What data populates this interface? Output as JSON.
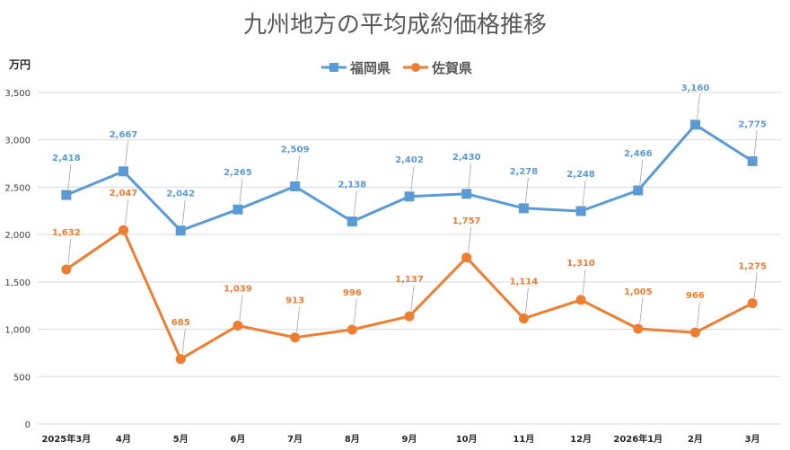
{
  "chart_data": {
    "type": "line",
    "title": "九州地方の平均成約価格推移",
    "ylabel": "万円",
    "xlabel": "",
    "ylim": [
      0,
      3500
    ],
    "yticks": [
      "0",
      "500",
      "1,000",
      "1,500",
      "2,000",
      "2,500",
      "3,000",
      "3,500"
    ],
    "ytick_values": [
      0,
      500,
      1000,
      1500,
      2000,
      2500,
      3000,
      3500
    ],
    "categories": [
      "2025年3月",
      "4月",
      "5月",
      "6月",
      "7月",
      "8月",
      "9月",
      "10月",
      "11月",
      "12月",
      "2026年1月",
      "2月",
      "3月"
    ],
    "grid": true,
    "legend_position": "top-center",
    "series": [
      {
        "name": "福岡県",
        "color": "#5b9bd5",
        "marker": "square",
        "values": [
          2418,
          2667,
          2042,
          2265,
          2509,
          2138,
          2402,
          2430,
          2278,
          2248,
          2466,
          3160,
          2775
        ],
        "labels": [
          "2,418",
          "2,667",
          "2,042",
          "2,265",
          "2,509",
          "2,138",
          "2,402",
          "2,430",
          "2,278",
          "2,248",
          "2,466",
          "3,160",
          "2,775"
        ]
      },
      {
        "name": "佐賀県",
        "color": "#ed7d31",
        "marker": "circle",
        "values": [
          1632,
          2047,
          685,
          1039,
          913,
          996,
          1137,
          1757,
          1114,
          1310,
          1005,
          966,
          1275
        ],
        "labels": [
          "1,632",
          "2,047",
          "685",
          "1,039",
          "913",
          "996",
          "1,137",
          "1,757",
          "1,114",
          "1,310",
          "1,005",
          "966",
          "1,275"
        ]
      }
    ]
  }
}
